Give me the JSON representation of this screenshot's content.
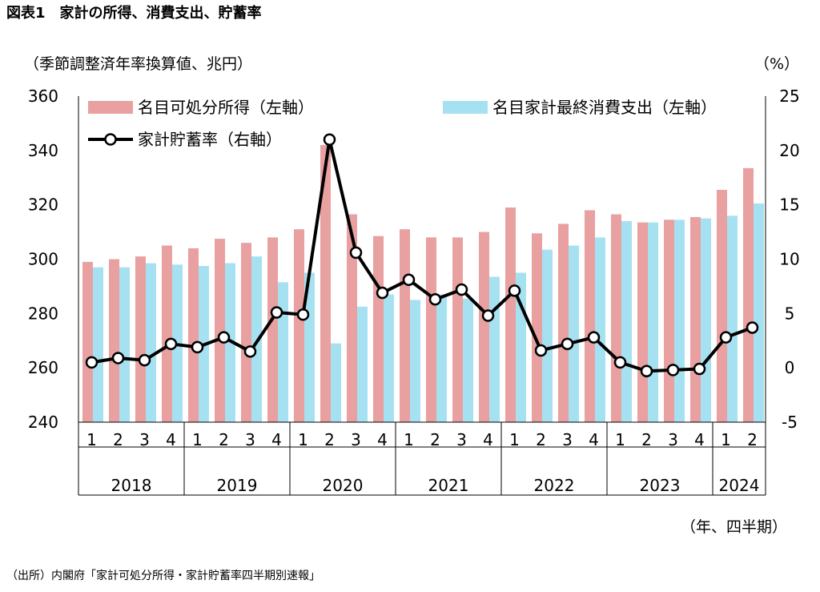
{
  "title": "図表1　家計の所得、消費支出、貯蓄率",
  "left_unit": "（季節調整済年率換算値、兆円）",
  "right_unit": "（%）",
  "x_unit": "（年、四半期）",
  "source": "（出所）内閣府「家計可処分所得・家計貯蓄率四半期別速報」",
  "colors": {
    "income": "#e8a0a0",
    "consumption": "#a6e1f2",
    "saving": "#000000"
  },
  "chart_data": {
    "type": "bar",
    "quarters": [
      "1",
      "2",
      "3",
      "4",
      "1",
      "2",
      "3",
      "4",
      "1",
      "2",
      "3",
      "4",
      "1",
      "2",
      "3",
      "4",
      "1",
      "2",
      "3",
      "4",
      "1",
      "2",
      "3",
      "4",
      "1",
      "2"
    ],
    "years": [
      {
        "label": "2018",
        "count": 4
      },
      {
        "label": "2019",
        "count": 4
      },
      {
        "label": "2020",
        "count": 4
      },
      {
        "label": "2021",
        "count": 4
      },
      {
        "label": "2022",
        "count": 4
      },
      {
        "label": "2023",
        "count": 4
      },
      {
        "label": "2024",
        "count": 2
      }
    ],
    "left_axis": {
      "min": 240,
      "max": 360,
      "ticks": [
        240,
        260,
        280,
        300,
        320,
        340,
        360
      ]
    },
    "right_axis": {
      "min": -5,
      "max": 25,
      "ticks": [
        -5,
        0,
        5,
        10,
        15,
        20,
        25
      ]
    },
    "series": [
      {
        "name": "名目可処分所得（左軸）",
        "type": "bar",
        "axis": "left",
        "values": [
          299,
          300,
          301,
          305,
          304,
          307.5,
          306,
          308,
          311,
          342,
          316.5,
          308.5,
          311,
          308,
          308,
          310,
          319,
          309.5,
          313,
          318,
          316.5,
          313.5,
          314.5,
          315.5,
          325.5,
          333.5
        ]
      },
      {
        "name": "名目家計最終消費支出（左軸）",
        "type": "bar",
        "axis": "left",
        "values": [
          297,
          297,
          298.5,
          298,
          297.5,
          298.5,
          301,
          291.5,
          295,
          269,
          282.5,
          287,
          285,
          287,
          285.5,
          293.5,
          295,
          303.5,
          305,
          308,
          314,
          313.5,
          314.5,
          315,
          316,
          320.5
        ]
      },
      {
        "name": "家計貯蓄率（右軸）",
        "type": "line",
        "axis": "right",
        "values": [
          0.5,
          0.9,
          0.7,
          2.2,
          1.9,
          2.8,
          1.5,
          5.1,
          4.9,
          21.0,
          10.6,
          6.9,
          8.1,
          6.3,
          7.2,
          4.8,
          7.1,
          1.6,
          2.2,
          2.8,
          0.5,
          -0.3,
          -0.2,
          -0.1,
          2.8,
          3.7
        ]
      }
    ]
  }
}
